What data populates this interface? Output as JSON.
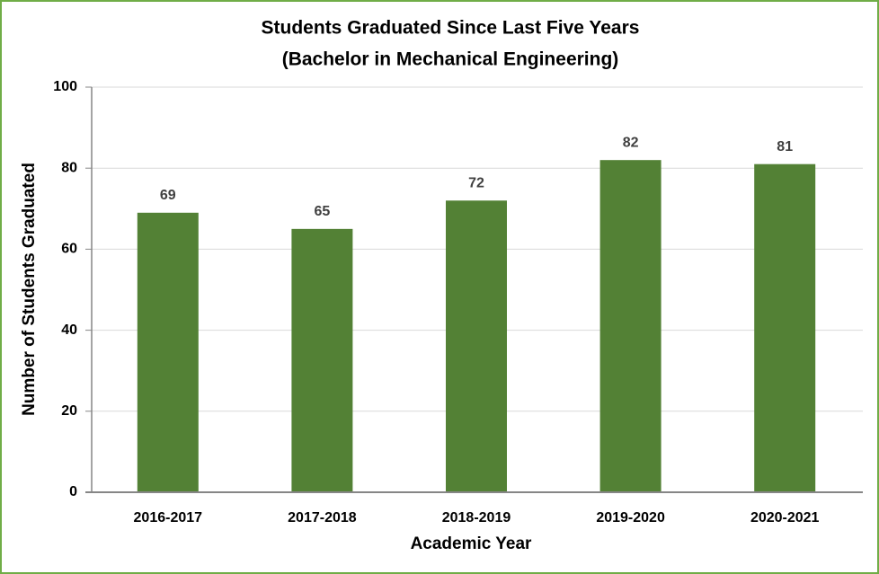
{
  "chart_data": {
    "type": "bar",
    "title": "Students Graduated Since Last Five Years",
    "subtitle": "(Bachelor in Mechanical Engineering)",
    "x_label": "Academic Year",
    "y_label": "Number of Students Graduated",
    "categories": [
      "2016-2017",
      "2017-2018",
      "2018-2019",
      "2019-2020",
      "2020-2021"
    ],
    "values": [
      69,
      65,
      72,
      82,
      81
    ],
    "color": "#538135",
    "ylim": [
      0,
      100
    ],
    "yticks": [
      0,
      20,
      40,
      60,
      80,
      100
    ],
    "grid": true
  }
}
